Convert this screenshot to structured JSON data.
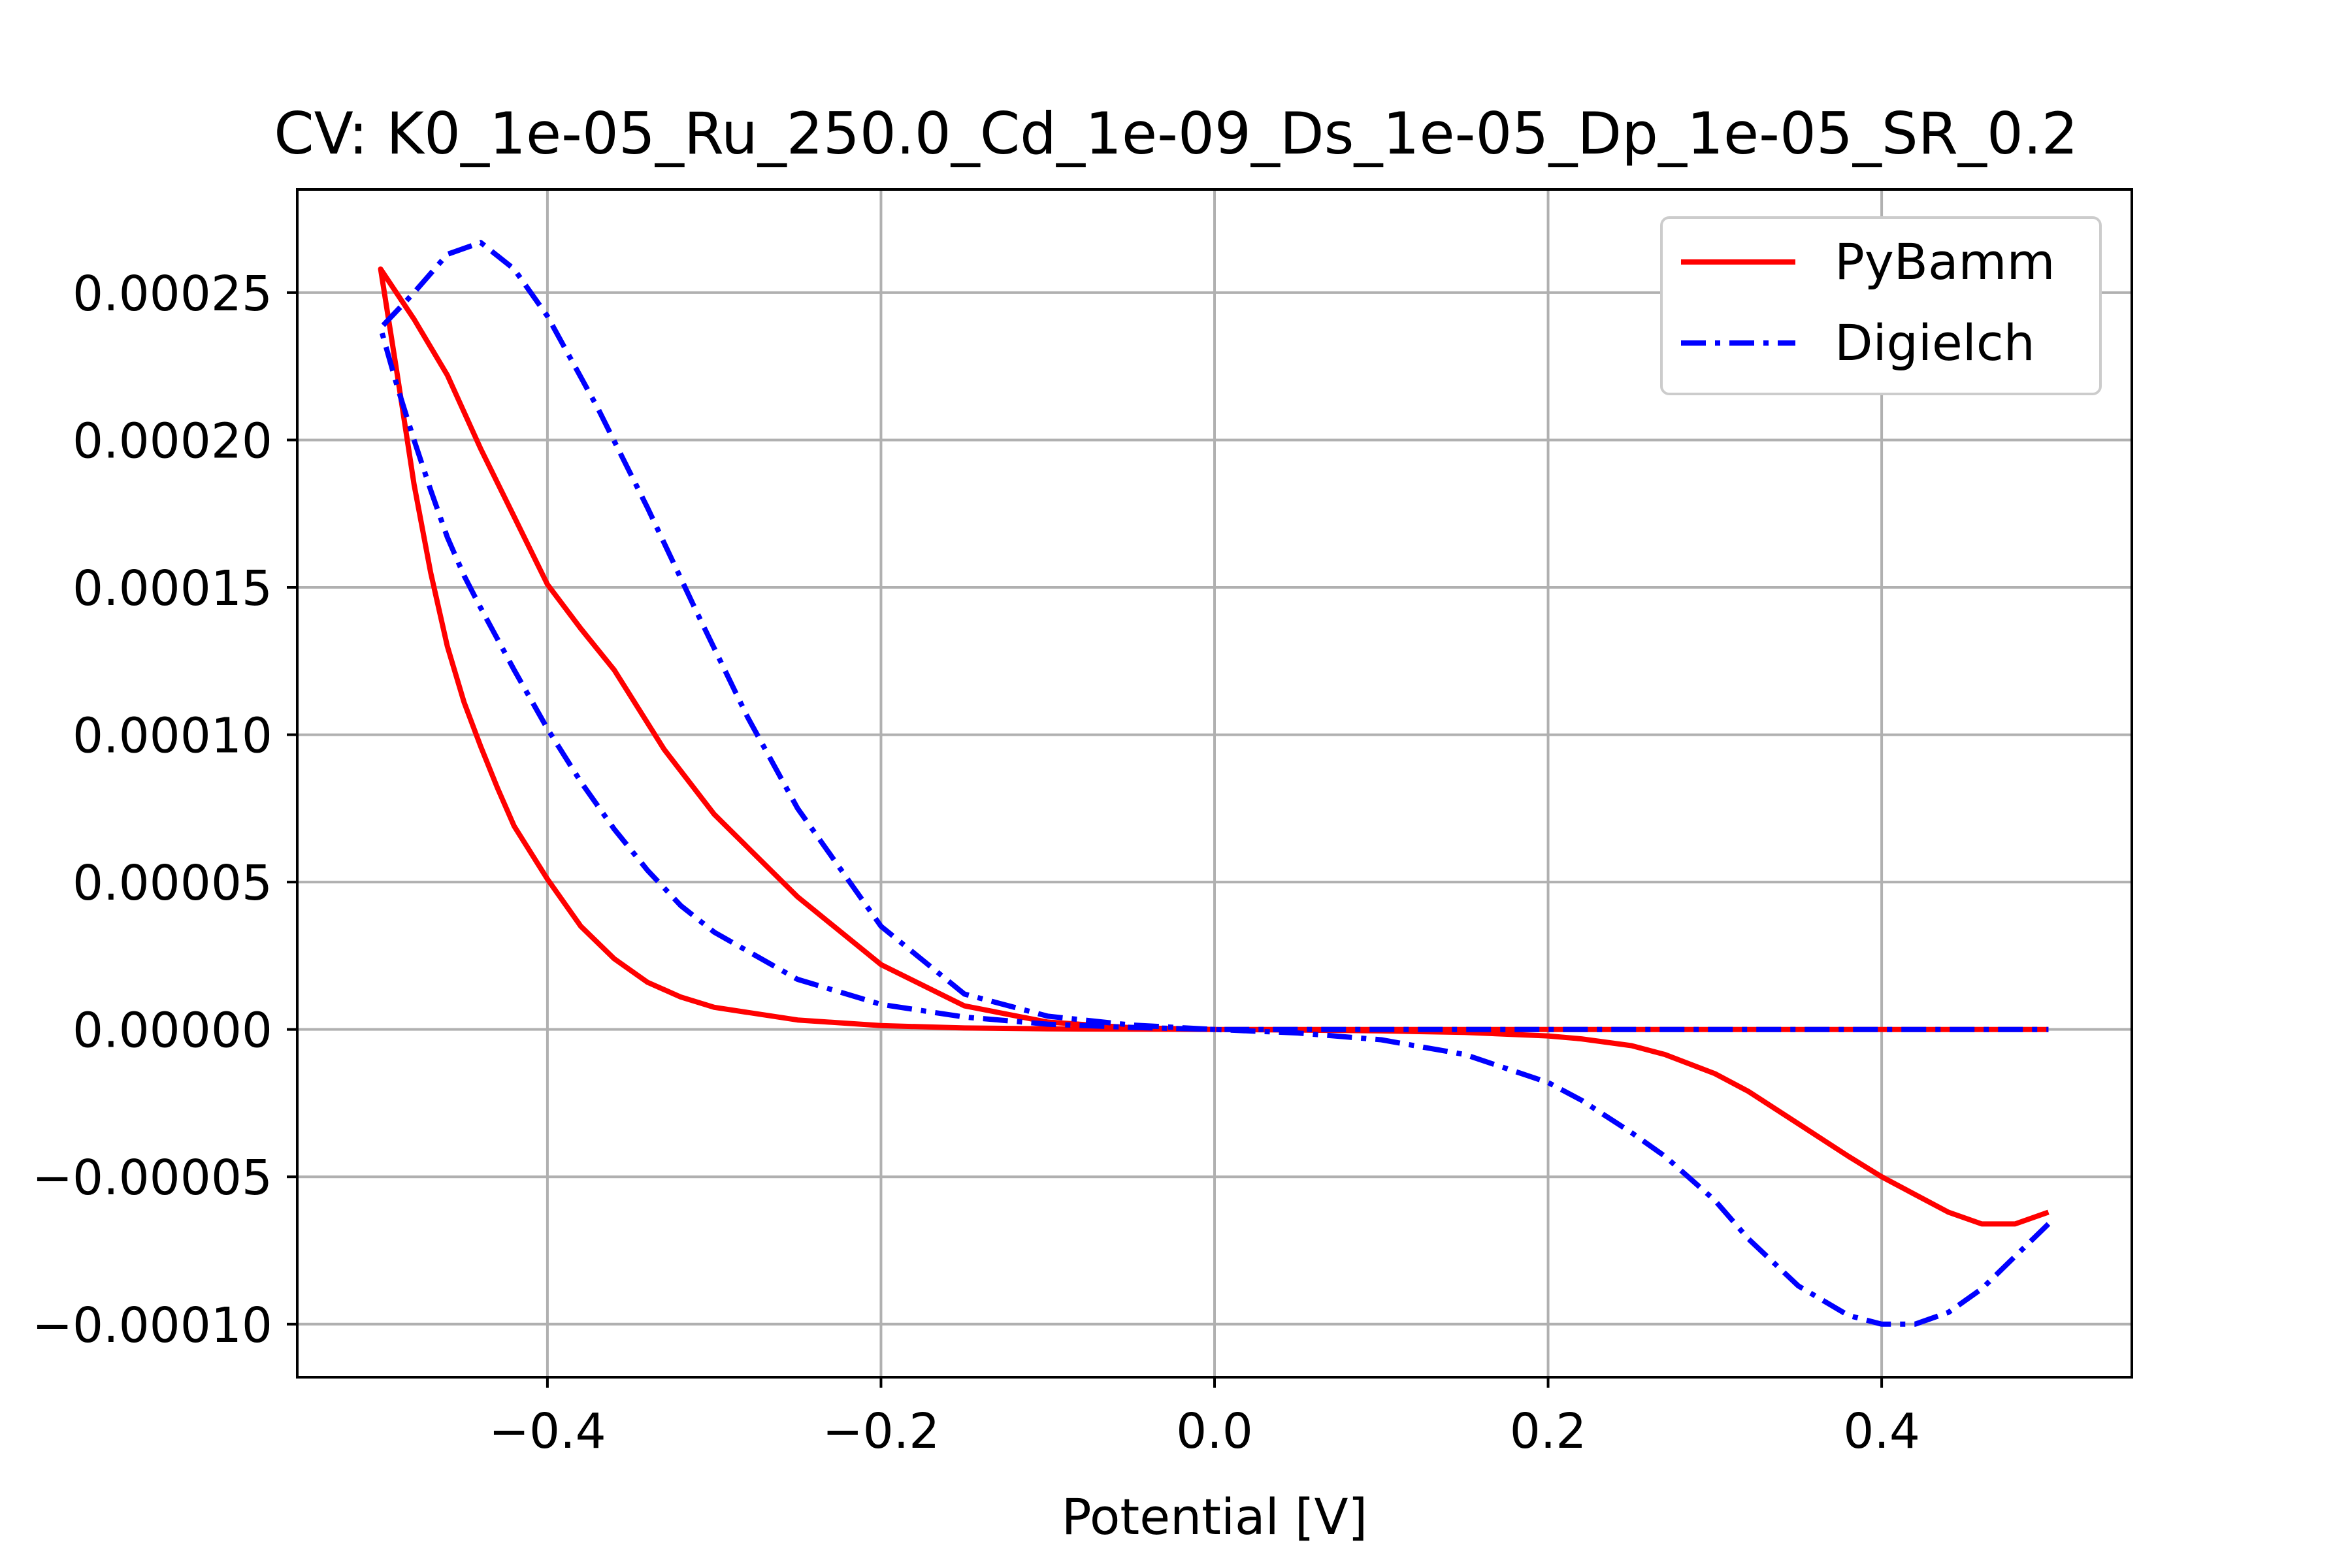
{
  "chart_data": {
    "type": "line",
    "title": "CV: K0_1e-05_Ru_250.0_Cd_1e-09_Ds_1e-05_Dp_1e-05_SR_0.2",
    "xlabel": "Potential [V]",
    "ylabel": "",
    "xlim": [
      -0.55,
      0.55
    ],
    "ylim": [
      -0.000118,
      0.000285
    ],
    "grid": true,
    "legend_position": "top-right",
    "x_ticks": [
      -0.4,
      -0.2,
      0.0,
      0.2,
      0.4
    ],
    "x_tick_labels": [
      "−0.4",
      "−0.2",
      "0.0",
      "0.2",
      "0.4"
    ],
    "y_ticks": [
      -0.0001,
      -5e-05,
      0.0,
      5e-05,
      0.0001,
      0.00015,
      0.0002,
      0.00025
    ],
    "y_tick_labels": [
      "−0.00010",
      "−0.00005",
      "0.00000",
      "0.00005",
      "0.00010",
      "0.00015",
      "0.00020",
      "0.00025"
    ],
    "series": [
      {
        "name": "PyBamm",
        "color": "#ff0000",
        "line_style": "solid",
        "x": [
          0.5,
          0.48,
          0.46,
          0.44,
          0.42,
          0.4,
          0.38,
          0.35,
          0.32,
          0.3,
          0.27,
          0.25,
          0.22,
          0.2,
          0.15,
          0.1,
          0.05,
          0.0,
          -0.05,
          -0.1,
          -0.15,
          -0.2,
          -0.25,
          -0.3,
          -0.33,
          -0.36,
          -0.38,
          -0.4,
          -0.42,
          -0.44,
          -0.46,
          -0.48,
          -0.5,
          -0.49,
          -0.48,
          -0.47,
          -0.46,
          -0.45,
          -0.44,
          -0.43,
          -0.42,
          -0.4,
          -0.38,
          -0.36,
          -0.34,
          -0.32,
          -0.3,
          -0.25,
          -0.2,
          -0.15,
          -0.1,
          -0.05,
          0.0,
          0.1,
          0.2,
          0.3,
          0.4,
          0.5
        ],
        "y": [
          -6.2e-05,
          -6.6e-05,
          -6.6e-05,
          -6.2e-05,
          -5.6e-05,
          -5e-05,
          -4.3e-05,
          -3.2e-05,
          -2.1e-05,
          -1.5e-05,
          -8.5e-06,
          -5.5e-06,
          -3.2e-06,
          -2.2e-06,
          -1e-06,
          -5e-07,
          -2e-07,
          0.0,
          6e-07,
          2.5e-06,
          8e-06,
          2.2e-05,
          4.5e-05,
          7.3e-05,
          9.5e-05,
          0.000122,
          0.000136,
          0.000151,
          0.000174,
          0.000197,
          0.000222,
          0.000241,
          0.000258,
          0.000222,
          0.000185,
          0.000155,
          0.00013,
          0.000111,
          9.6e-05,
          8.2e-05,
          6.9e-05,
          5.1e-05,
          3.5e-05,
          2.4e-05,
          1.6e-05,
          1.1e-05,
          7.5e-06,
          3.2e-06,
          1.3e-06,
          5e-07,
          2e-07,
          1e-07,
          0.0,
          0.0,
          0.0,
          0.0,
          0.0,
          0.0
        ]
      },
      {
        "name": "Digielch",
        "color": "#0000ff",
        "line_style": "dashdot",
        "x": [
          0.5,
          0.48,
          0.46,
          0.44,
          0.42,
          0.4,
          0.38,
          0.35,
          0.32,
          0.3,
          0.27,
          0.25,
          0.22,
          0.2,
          0.15,
          0.1,
          0.05,
          0.0,
          -0.05,
          -0.1,
          -0.15,
          -0.2,
          -0.25,
          -0.28,
          -0.31,
          -0.34,
          -0.37,
          -0.4,
          -0.42,
          -0.44,
          -0.46,
          -0.48,
          -0.5,
          -0.49,
          -0.48,
          -0.47,
          -0.46,
          -0.45,
          -0.44,
          -0.42,
          -0.4,
          -0.38,
          -0.36,
          -0.34,
          -0.32,
          -0.3,
          -0.25,
          -0.2,
          -0.15,
          -0.1,
          -0.05,
          0.0,
          0.1,
          0.2,
          0.3,
          0.4,
          0.5
        ],
        "y": [
          -6.6e-05,
          -7.7e-05,
          -8.8e-05,
          -9.6e-05,
          -0.0001,
          -0.0001,
          -9.7e-05,
          -8.7e-05,
          -7.1e-05,
          -5.8e-05,
          -4.3e-05,
          -3.5e-05,
          -2.4e-05,
          -1.8e-05,
          -8.5e-06,
          -3.5e-06,
          -1.2e-06,
          0.0,
          1.5e-06,
          4.5e-06,
          1.2e-05,
          3.5e-05,
          7.5e-05,
          0.000106,
          0.000141,
          0.000177,
          0.000211,
          0.000242,
          0.000258,
          0.000267,
          0.000263,
          0.00025,
          0.000238,
          0.000218,
          0.0002,
          0.000183,
          0.000167,
          0.000154,
          0.000143,
          0.000122,
          0.000102,
          8.4e-05,
          6.8e-05,
          5.4e-05,
          4.2e-05,
          3.3e-05,
          1.7e-05,
          8.5e-06,
          4.2e-06,
          1.8e-06,
          7e-07,
          0.0,
          0.0,
          0.0,
          0.0,
          0.0,
          0.0
        ]
      }
    ]
  }
}
